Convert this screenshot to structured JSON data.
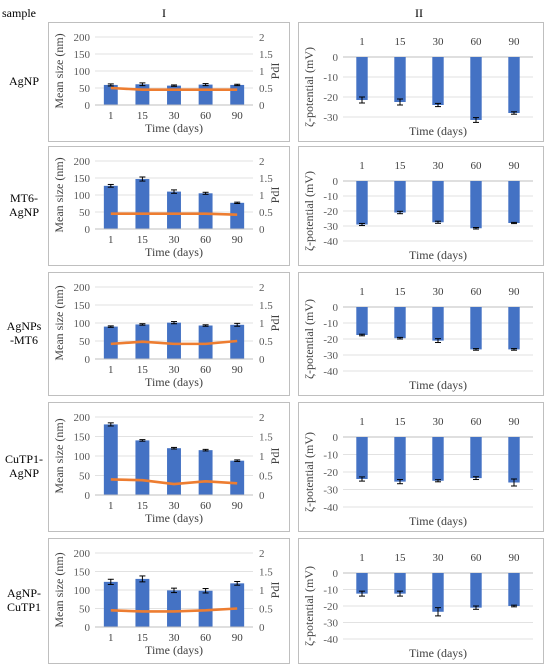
{
  "headers": {
    "sample": "sample",
    "col1": "I",
    "col2": "II"
  },
  "rows": [
    {
      "label_lines": [
        "AgNP"
      ],
      "size": {
        "values": [
          59,
          61,
          57,
          60,
          59
        ],
        "errors": [
          3,
          4,
          2,
          3,
          2
        ],
        "pdi": [
          0.5,
          0.45,
          0.45,
          0.45,
          0.45
        ]
      },
      "zeta": {
        "values": [
          -21.5,
          -22.5,
          -24,
          -31.5,
          -28
        ],
        "errors": [
          1.5,
          1.5,
          0.8,
          1.2,
          0.6
        ],
        "ylim": [
          -30,
          0
        ],
        "yticks": [
          0,
          -10,
          -20,
          -30
        ]
      }
    },
    {
      "label_lines": [
        "MT6-",
        "AgNP"
      ],
      "size": {
        "values": [
          127,
          147,
          110,
          105,
          77
        ],
        "errors": [
          4,
          6,
          5,
          3,
          2
        ],
        "pdi": [
          0.45,
          0.45,
          0.45,
          0.45,
          0.42
        ]
      },
      "zeta": {
        "values": [
          -29,
          -21,
          -27.5,
          -31.5,
          -28
        ],
        "errors": [
          0.7,
          0.8,
          0.7,
          0.5,
          0.4
        ],
        "ylim": [
          -40,
          0
        ],
        "yticks": [
          0,
          -10,
          -20,
          -30,
          -40
        ]
      }
    },
    {
      "label_lines": [
        "AgNPs",
        "-MT6"
      ],
      "size": {
        "values": [
          90,
          96,
          101,
          93,
          95
        ],
        "errors": [
          2,
          2,
          3,
          2,
          4
        ],
        "pdi": [
          0.42,
          0.48,
          0.42,
          0.42,
          0.5
        ]
      },
      "zeta": {
        "values": [
          -17.5,
          -19.5,
          -21,
          -26.5,
          -26.5
        ],
        "errors": [
          0.5,
          0.5,
          1.2,
          0.5,
          0.5
        ],
        "ylim": [
          -40,
          0
        ],
        "yticks": [
          0,
          -10,
          -20,
          -30,
          -40
        ]
      }
    },
    {
      "label_lines": [
        "CuTP1-",
        "AgNP"
      ],
      "size": {
        "values": [
          181,
          140,
          120,
          115,
          88
        ],
        "errors": [
          4,
          2,
          2,
          2,
          2
        ],
        "pdi": [
          0.4,
          0.38,
          0.28,
          0.35,
          0.3
        ]
      },
      "zeta": {
        "values": [
          -24,
          -25.5,
          -25,
          -23.5,
          -26
        ],
        "errors": [
          1.2,
          1.2,
          0.6,
          0.8,
          2
        ],
        "ylim": [
          -40,
          0
        ],
        "yticks": [
          0,
          -10,
          -20,
          -30,
          -40
        ]
      }
    },
    {
      "label_lines": [
        "AgNP-",
        "CuTP1"
      ],
      "size": {
        "values": [
          122,
          130,
          99,
          98,
          118
        ],
        "errors": [
          7,
          8,
          6,
          6,
          5
        ],
        "pdi": [
          0.45,
          0.42,
          0.42,
          0.45,
          0.5
        ]
      },
      "zeta": {
        "values": [
          -12.5,
          -12.5,
          -23.5,
          -21,
          -20
        ],
        "errors": [
          1.5,
          1.5,
          2.5,
          1,
          0.5
        ],
        "ylim": [
          -40,
          0
        ],
        "yticks": [
          0,
          -10,
          -20,
          -30,
          -40
        ]
      }
    }
  ],
  "chart_data": [
    {
      "type": "bar+line",
      "panel": "I",
      "categories": [
        "1",
        "15",
        "30",
        "60",
        "90"
      ],
      "xlabel": "Time (days)",
      "ylabel": "Mean size (nm)",
      "y2label": "PdI",
      "ylim": [
        0,
        200
      ],
      "yticks": [
        0,
        50,
        100,
        150,
        200
      ],
      "y2lim": [
        0,
        2
      ],
      "y2ticks": [
        "0",
        "0.5",
        "1",
        "1.5",
        "2"
      ],
      "bar_color": "#4472c4",
      "line_color": "#ed7d31"
    },
    {
      "type": "bar",
      "panel": "II",
      "categories": [
        "1",
        "15",
        "30",
        "60",
        "90"
      ],
      "xlabel": "Time (days)",
      "ylabel": "ζ-potential (mV)",
      "bar_color": "#4472c4"
    }
  ]
}
